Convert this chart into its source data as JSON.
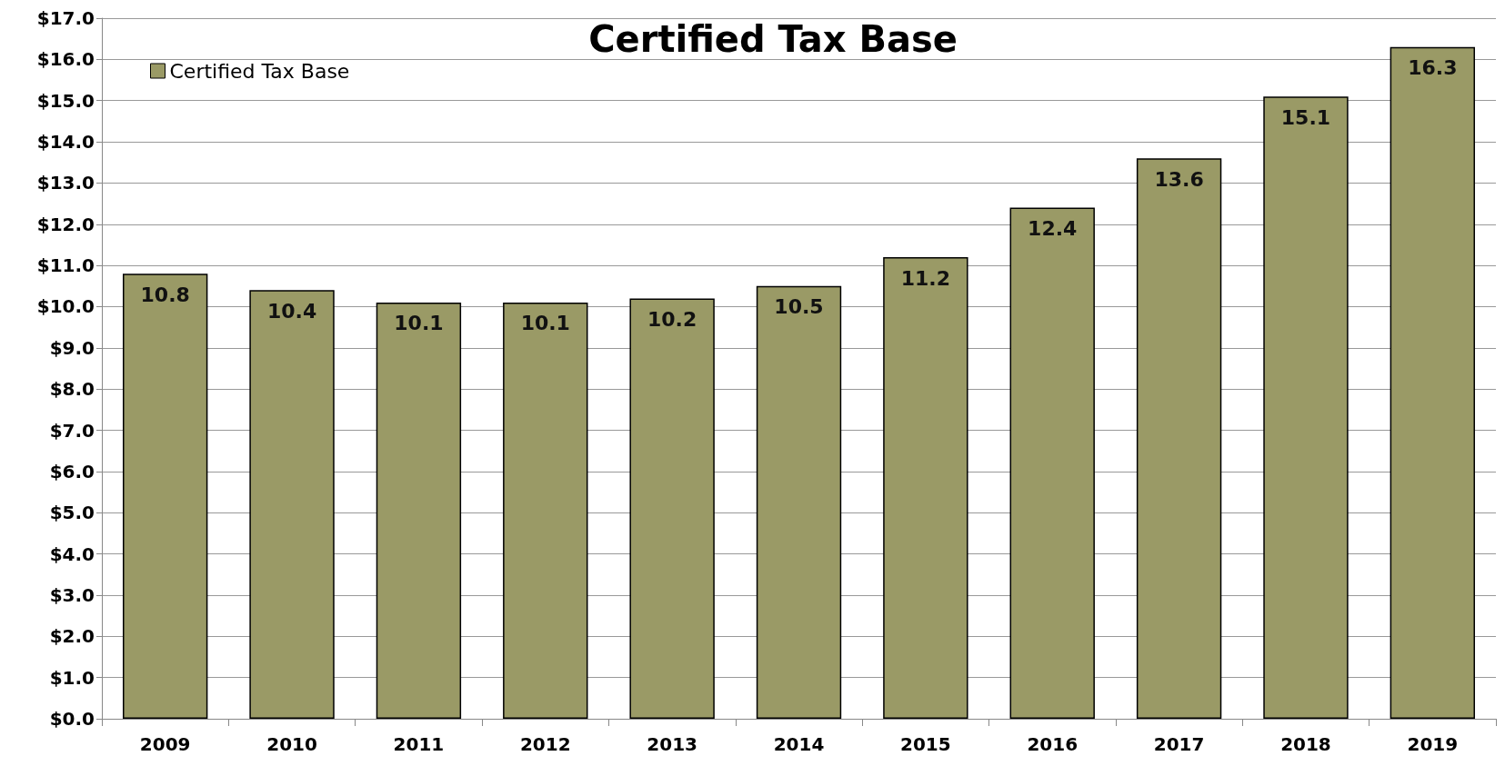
{
  "chart_data": {
    "type": "bar",
    "title": "Certified Tax Base",
    "categories": [
      "2009",
      "2010",
      "2011",
      "2012",
      "2013",
      "2014",
      "2015",
      "2016",
      "2017",
      "2018",
      "2019"
    ],
    "series": [
      {
        "name": "Certified Tax Base",
        "color": "#9a9a66",
        "values": [
          10.8,
          10.4,
          10.1,
          10.1,
          10.2,
          10.5,
          11.2,
          12.4,
          13.6,
          15.1,
          16.3
        ]
      }
    ],
    "ylim": [
      0,
      17
    ],
    "yticks": [
      {
        "value": 0,
        "label": "$0.0"
      },
      {
        "value": 1,
        "label": "$1.0"
      },
      {
        "value": 2,
        "label": "$2.0"
      },
      {
        "value": 3,
        "label": "$3.0"
      },
      {
        "value": 4,
        "label": "$4.0"
      },
      {
        "value": 5,
        "label": "$5.0"
      },
      {
        "value": 6,
        "label": "$6.0"
      },
      {
        "value": 7,
        "label": "$7.0"
      },
      {
        "value": 8,
        "label": "$8.0"
      },
      {
        "value": 9,
        "label": "$9.0"
      },
      {
        "value": 10,
        "label": "$10.0"
      },
      {
        "value": 11,
        "label": "$11.0"
      },
      {
        "value": 12,
        "label": "$12.0"
      },
      {
        "value": 13,
        "label": "$13.0"
      },
      {
        "value": 14,
        "label": "$14.0"
      },
      {
        "value": 15,
        "label": "$15.0"
      },
      {
        "value": 16,
        "label": "$16.0"
      },
      {
        "value": 17,
        "label": "$17.0"
      }
    ],
    "grid": "y",
    "legend": "top left",
    "data_labels": true
  }
}
